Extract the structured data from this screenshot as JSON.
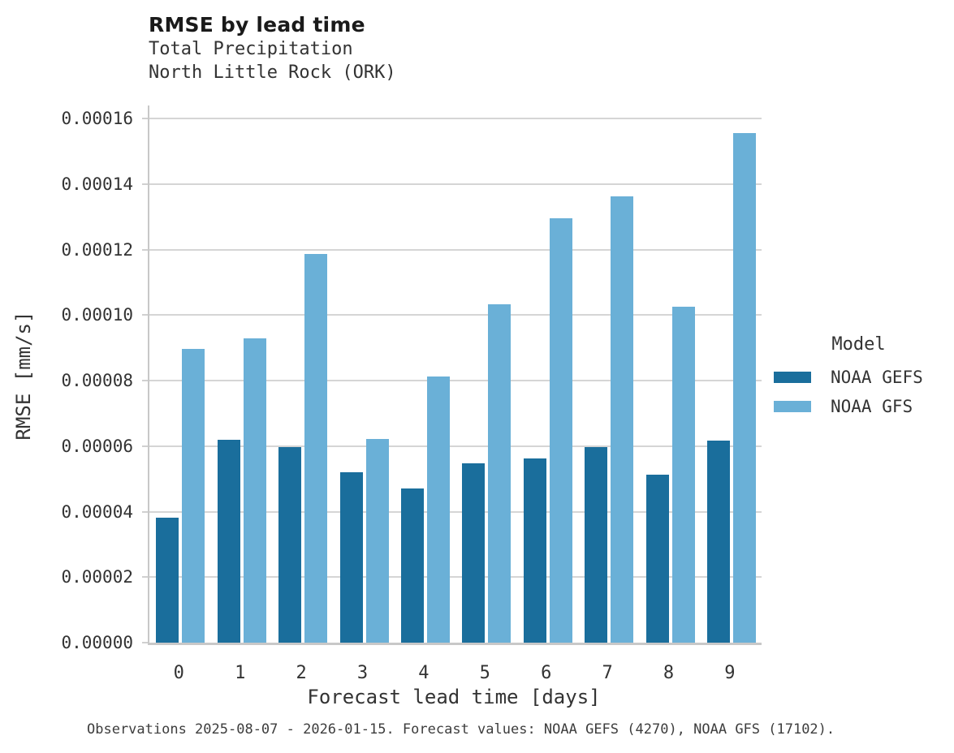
{
  "header": {
    "title": "RMSE by lead time",
    "subtitle_line1": "Total Precipitation",
    "subtitle_line2": "North Little Rock (ORK)"
  },
  "footer": {
    "note": "Observations 2025-08-07 - 2026-01-15. Forecast values: NOAA GEFS (4270), NOAA GFS (17102)."
  },
  "legend": {
    "title": "Model",
    "items": [
      {
        "label": "NOAA GEFS",
        "color": "#1a6e9c"
      },
      {
        "label": "NOAA GFS",
        "color": "#6ab0d7"
      }
    ]
  },
  "chart_data": {
    "type": "bar",
    "title": "RMSE by lead time",
    "subtitle": [
      "Total Precipitation",
      "North Little Rock (ORK)"
    ],
    "xlabel": "Forecast lead time [days]",
    "ylabel": "RMSE [mm/s]",
    "categories": [
      "0",
      "1",
      "2",
      "3",
      "4",
      "5",
      "6",
      "7",
      "8",
      "9"
    ],
    "series": [
      {
        "name": "NOAA GEFS",
        "color": "#1a6e9c",
        "values": [
          3.82e-05,
          6.2e-05,
          5.97e-05,
          5.21e-05,
          4.71e-05,
          5.48e-05,
          5.62e-05,
          5.97e-05,
          5.13e-05,
          6.16e-05
        ]
      },
      {
        "name": "NOAA GFS",
        "color": "#6ab0d7",
        "values": [
          8.97e-05,
          9.29e-05,
          0.0001188,
          6.21e-05,
          8.12e-05,
          0.0001033,
          0.0001296,
          0.0001363,
          0.0001026,
          0.0001556
        ]
      }
    ],
    "ylim": [
      0,
      0.000164
    ],
    "yticks": [
      0.0,
      2e-05,
      4e-05,
      6e-05,
      8e-05,
      0.0001,
      0.00012,
      0.00014,
      0.00016
    ],
    "ytick_labels": [
      "0.00000",
      "0.00002",
      "0.00004",
      "0.00006",
      "0.00008",
      "0.00010",
      "0.00012",
      "0.00014",
      "0.00016"
    ],
    "legend_title": "Model",
    "legend_position": "center-right",
    "grid": "horizontal"
  }
}
